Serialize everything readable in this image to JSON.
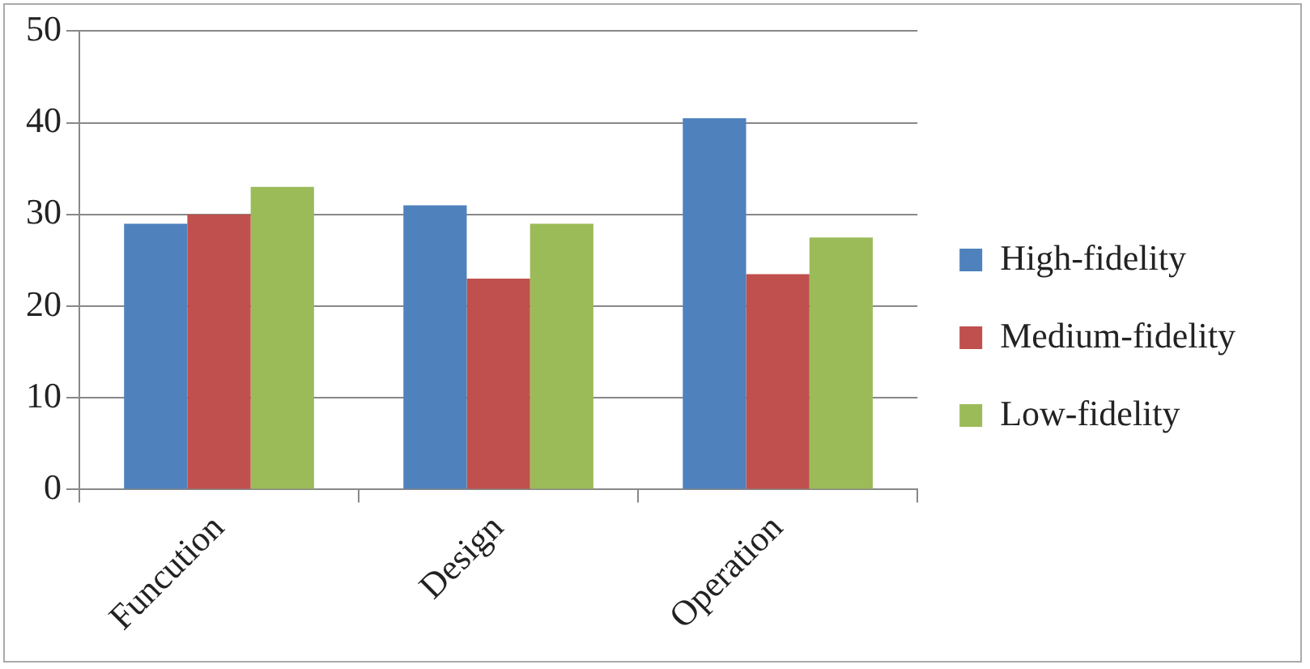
{
  "chart_data": {
    "type": "bar",
    "categories": [
      "Funcution",
      "Design",
      "Operation"
    ],
    "series": [
      {
        "name": "High-fidelity",
        "color": "#4f81bd",
        "values": [
          29,
          31,
          40.5
        ]
      },
      {
        "name": "Medium-fidelity",
        "color": "#c0504d",
        "values": [
          30,
          23,
          23.5
        ]
      },
      {
        "name": "Low-fidelity",
        "color": "#9bbb59",
        "values": [
          33,
          29,
          27.5
        ]
      }
    ],
    "ylim": [
      0,
      50
    ],
    "yticks": [
      0,
      10,
      20,
      30,
      40,
      50
    ],
    "grid": "y",
    "legend": "right"
  }
}
